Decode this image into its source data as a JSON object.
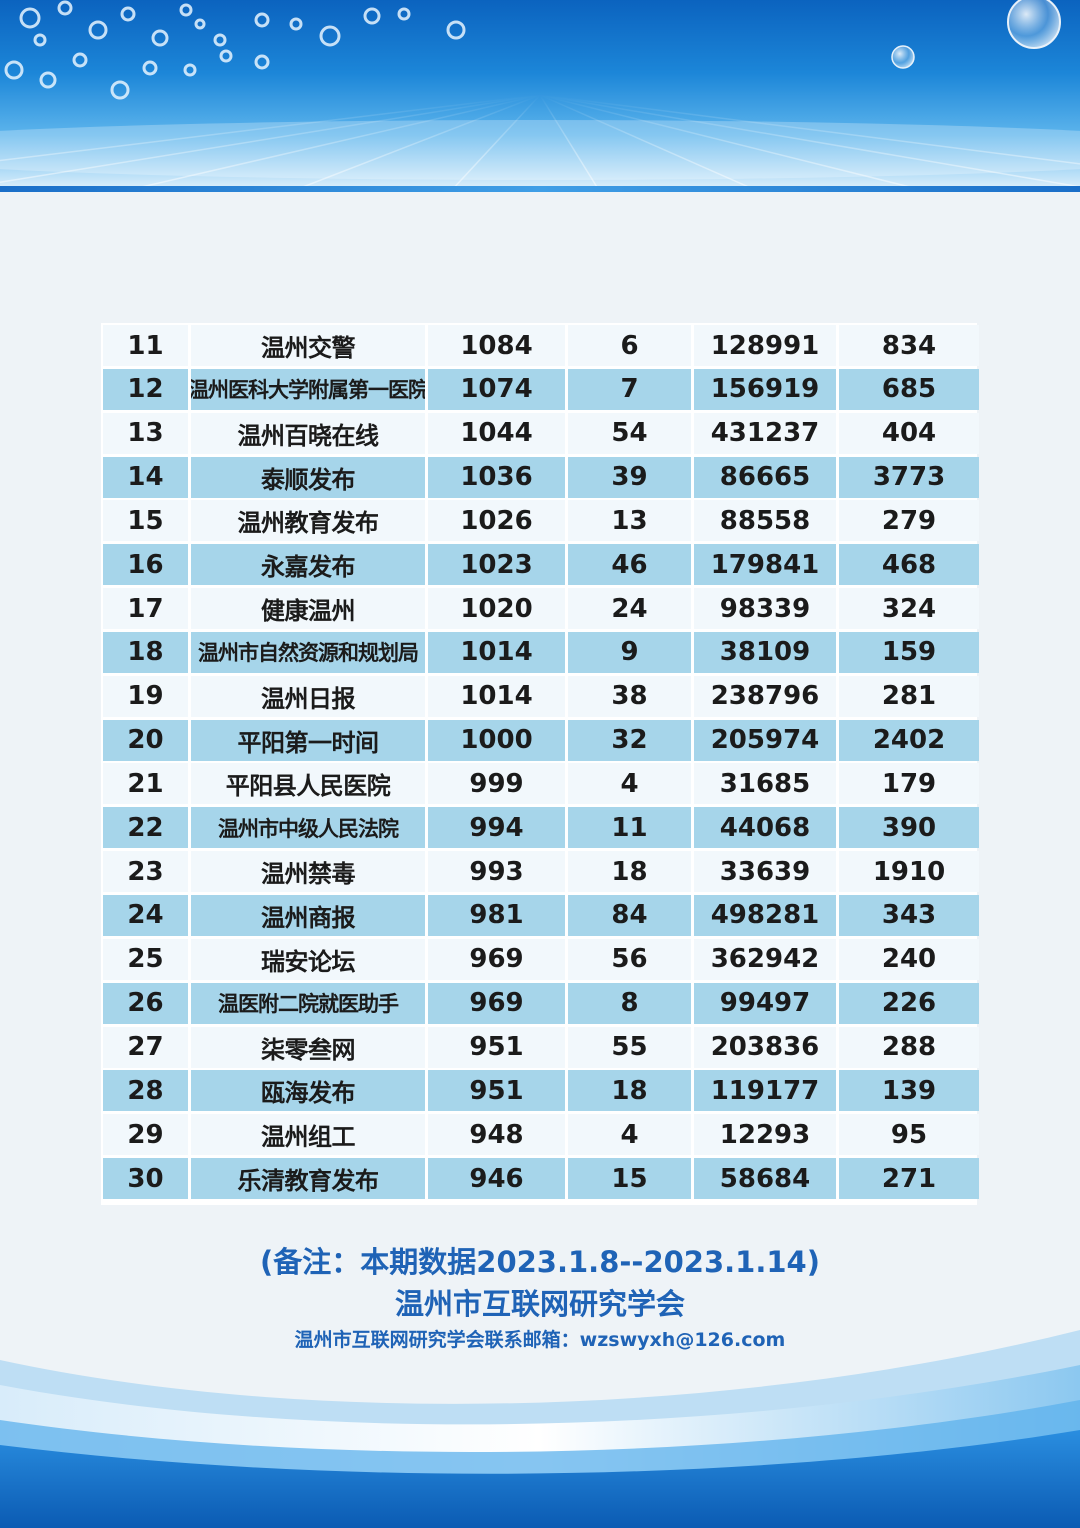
{
  "table": {
    "rows": [
      [
        "11",
        "温州交警",
        "1084",
        "6",
        "128991",
        "834"
      ],
      [
        "12",
        "温州医科大学附属第一医院",
        "1074",
        "7",
        "156919",
        "685"
      ],
      [
        "13",
        "温州百晓在线",
        "1044",
        "54",
        "431237",
        "404"
      ],
      [
        "14",
        "泰顺发布",
        "1036",
        "39",
        "86665",
        "3773"
      ],
      [
        "15",
        "温州教育发布",
        "1026",
        "13",
        "88558",
        "279"
      ],
      [
        "16",
        "永嘉发布",
        "1023",
        "46",
        "179841",
        "468"
      ],
      [
        "17",
        "健康温州",
        "1020",
        "24",
        "98339",
        "324"
      ],
      [
        "18",
        "温州市自然资源和规划局",
        "1014",
        "9",
        "38109",
        "159"
      ],
      [
        "19",
        "温州日报",
        "1014",
        "38",
        "238796",
        "281"
      ],
      [
        "20",
        "平阳第一时间",
        "1000",
        "32",
        "205974",
        "2402"
      ],
      [
        "21",
        "平阳县人民医院",
        "999",
        "4",
        "31685",
        "179"
      ],
      [
        "22",
        "温州市中级人民法院",
        "994",
        "11",
        "44068",
        "390"
      ],
      [
        "23",
        "温州禁毒",
        "993",
        "18",
        "33639",
        "1910"
      ],
      [
        "24",
        "温州商报",
        "981",
        "84",
        "498281",
        "343"
      ],
      [
        "25",
        "瑞安论坛",
        "969",
        "56",
        "362942",
        "240"
      ],
      [
        "26",
        "温医附二院就医助手",
        "969",
        "8",
        "99497",
        "226"
      ],
      [
        "27",
        "柒零叁网",
        "951",
        "55",
        "203836",
        "288"
      ],
      [
        "28",
        "瓯海发布",
        "951",
        "18",
        "119177",
        "139"
      ],
      [
        "29",
        "温州组工",
        "948",
        "4",
        "12293",
        "95"
      ],
      [
        "30",
        "乐清教育发布",
        "946",
        "15",
        "58684",
        "271"
      ]
    ]
  },
  "footer": {
    "period_note": "(备注：本期数据2023.1.8--2023.1.14)",
    "organization": "温州市互联网研究学会",
    "email_line": "温州市互联网研究学会联系邮箱：wzswyxh@126.com"
  },
  "colors": {
    "stripe": "#a6d5ea",
    "row_light": "#f2f8fc",
    "note_text": "#1f63b6",
    "banner_blue": "#0b63bf"
  }
}
